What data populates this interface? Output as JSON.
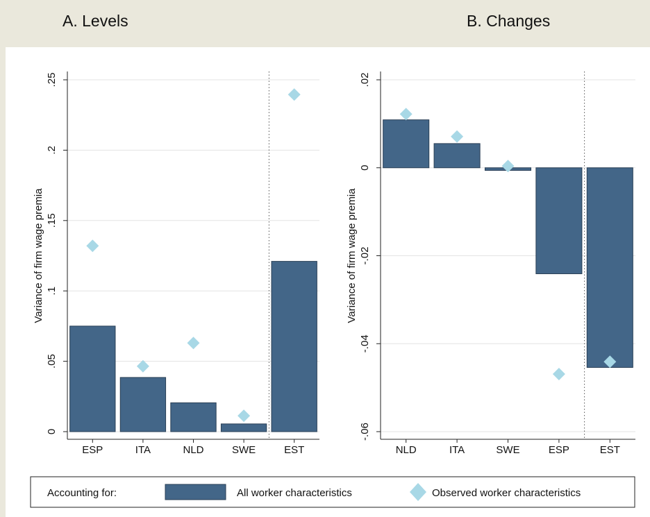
{
  "chart_data": [
    {
      "type": "bar",
      "title": "A. Levels",
      "y_label": "Variance of firm wage premia",
      "categories": [
        "ESP",
        "ITA",
        "NLD",
        "SWE",
        "EST"
      ],
      "series": [
        {
          "name": "All worker characteristics",
          "mark": "bar",
          "color": "#436688",
          "values": [
            0.075,
            0.0385,
            0.0205,
            0.0055,
            0.121
          ]
        },
        {
          "name": "Observed worker characteristics",
          "mark": "diamond",
          "color": "#a8d8e6",
          "values": [
            0.132,
            0.0465,
            0.063,
            0.0113,
            0.2395
          ]
        }
      ],
      "ylim": [
        0,
        0.25
      ],
      "yticks": [
        0,
        {
          "value": 0.05,
          "label": ".05"
        },
        {
          "value": 0.1,
          "label": ".1"
        },
        {
          "value": 0.15,
          "label": ".15"
        },
        {
          "value": 0.2,
          "label": ".2"
        },
        {
          "value": 0.25,
          "label": ".25"
        }
      ],
      "grid": true
    },
    {
      "type": "bar",
      "title": "B. Changes",
      "y_label": "Variance of firm wage premia",
      "categories": [
        "NLD",
        "ITA",
        "SWE",
        "ESP",
        "EST"
      ],
      "series": [
        {
          "name": "All worker characteristics",
          "mark": "bar",
          "color": "#436688",
          "values": [
            0.0109,
            0.0055,
            -0.0006,
            -0.0241,
            -0.0454
          ]
        },
        {
          "name": "Observed worker characteristics",
          "mark": "diamond",
          "color": "#a8d8e6",
          "values": [
            0.0122,
            0.0071,
            0.0004,
            -0.0469,
            -0.0441
          ]
        }
      ],
      "ylim": [
        -0.06,
        0.02
      ],
      "yticks": [
        {
          "value": -0.06,
          "label": "-.06"
        },
        {
          "value": -0.04,
          "label": "-.04"
        },
        {
          "value": -0.02,
          "label": "-.02"
        },
        0,
        {
          "value": 0.02,
          "label": ".02"
        }
      ],
      "grid": true
    }
  ],
  "legend": {
    "title": "Accounting for:"
  }
}
